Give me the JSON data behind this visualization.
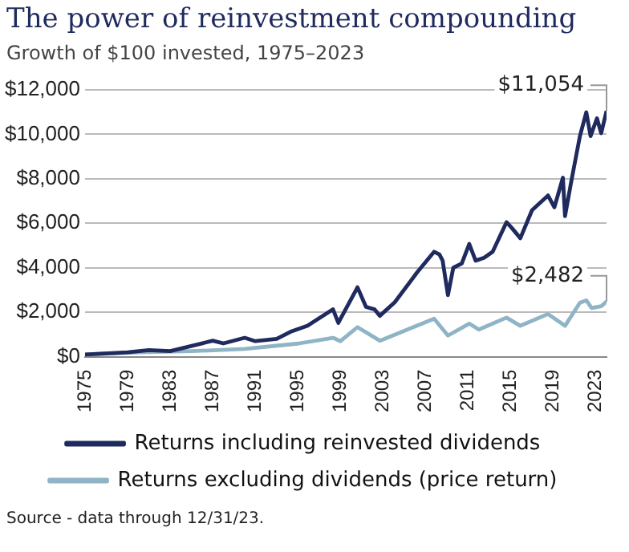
{
  "chart_data": {
    "type": "line",
    "title": "The power of reinvestment compounding",
    "subtitle": "Growth of $100 invested, 1975–2023",
    "annotations": [
      {
        "text": "$11,054",
        "x": 2024,
        "y": 11054
      },
      {
        "text": "$2,482",
        "x": 2024,
        "y": 2482
      },
      "Source - data through 12/31/23."
    ],
    "series": [
      {
        "name": "Returns including reinvested dividends",
        "color": "#1f2a5e",
        "x": [
          1975,
          1979,
          1981,
          1983,
          1987,
          1988,
          1990,
          1991,
          1993,
          1994.3,
          1995.9,
          1998.3,
          1998.8,
          2000.6,
          2001.4,
          2002.2,
          2002.7,
          2004.1,
          2006.2,
          2007.8,
          2008.3,
          2008.6,
          2009.1,
          2009.6,
          2010.4,
          2011.1,
          2011.7,
          2012.5,
          2013.3,
          2014.6,
          2015.1,
          2015.9,
          2017,
          2018.5,
          2019.1,
          2019.9,
          2020.1,
          2020.7,
          2021.5,
          2022.1,
          2022.5,
          2023.1,
          2023.5,
          2024
        ],
        "values": [
          100,
          200,
          300,
          250,
          720,
          600,
          850,
          700,
          800,
          1120,
          1390,
          2130,
          1520,
          3120,
          2240,
          2130,
          1840,
          2450,
          3790,
          4720,
          4600,
          4320,
          2770,
          4000,
          4190,
          5070,
          4320,
          4450,
          4720,
          6050,
          5790,
          5330,
          6590,
          7250,
          6720,
          8050,
          6320,
          7920,
          9920,
          10990,
          9920,
          10720,
          10050,
          11054
        ]
      },
      {
        "name": "Returns excluding dividends (price return)",
        "color": "#8fb4c6",
        "x": [
          1975,
          1980,
          1985,
          1990,
          1995,
          1998.3,
          1999,
          2000.6,
          2002.7,
          2007.8,
          2009.1,
          2011.1,
          2012,
          2014.6,
          2015.9,
          2018.5,
          2020.1,
          2021.5,
          2022.1,
          2022.6,
          2023.5,
          2024
        ],
        "values": [
          100,
          200,
          250,
          350,
          590,
          850,
          700,
          1330,
          720,
          1710,
          950,
          1490,
          1220,
          1760,
          1390,
          1920,
          1390,
          2430,
          2530,
          2190,
          2270,
          2482
        ]
      }
    ],
    "xlim": [
      1975,
      2024
    ],
    "xticks": [
      1975,
      1979,
      1983,
      1987,
      1991,
      1995,
      1999,
      2003,
      2007,
      2011,
      2015,
      2019,
      2023
    ],
    "ylim": [
      0,
      12000
    ],
    "yticks": [
      {
        "value": 0,
        "label": "$0"
      },
      {
        "value": 2000,
        "label": "$2,000"
      },
      {
        "value": 4000,
        "label": "$4,000"
      },
      {
        "value": 6000,
        "label": "$6,000"
      },
      {
        "value": 8000,
        "label": "$8,000"
      },
      {
        "value": 10000,
        "label": "$10,000"
      },
      {
        "value": 12000,
        "label": "$12,000"
      }
    ],
    "grid": "y",
    "legend": "bottom",
    "marker": "none",
    "line_style": "solid"
  }
}
